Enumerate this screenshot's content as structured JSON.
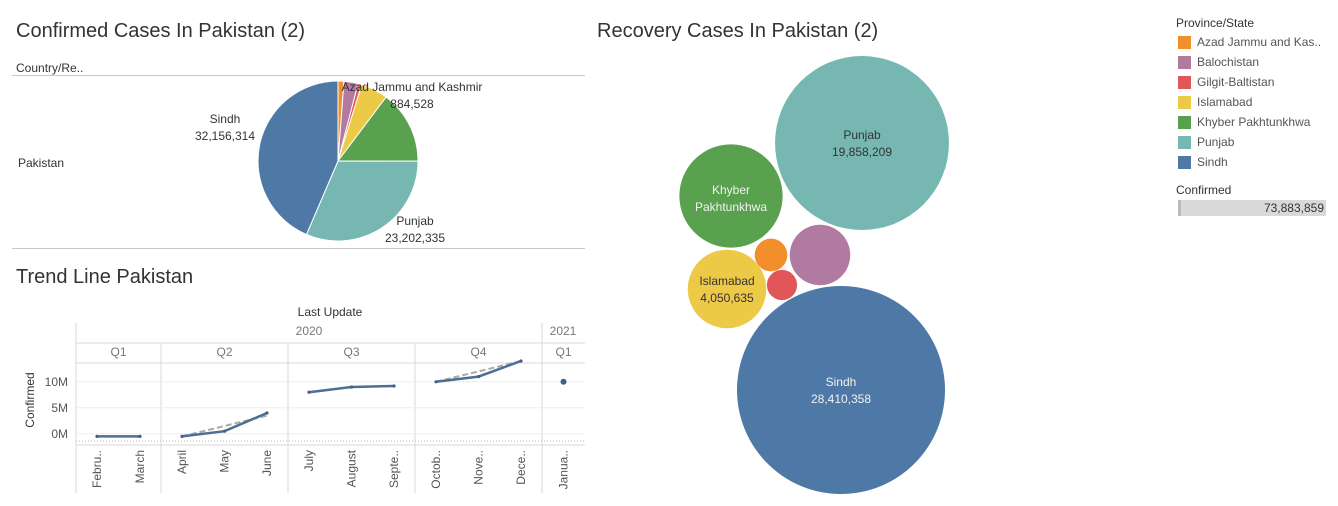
{
  "confirmed_title": "Confirmed Cases In Pakistan (2)",
  "recovery_title": "Recovery Cases In Pakistan (2)",
  "trend_title": "Trend Line Pakistan",
  "country_header": "Country/Re..",
  "country_value": "Pakistan",
  "legend": {
    "title": "Province/State",
    "items": [
      {
        "label": "Azad Jammu and Kas..",
        "color": "#f28e2b"
      },
      {
        "label": "Balochistan",
        "color": "#b07aa1"
      },
      {
        "label": "Gilgit-Baltistan",
        "color": "#e15759"
      },
      {
        "label": "Islamabad",
        "color": "#edc948"
      },
      {
        "label": "Khyber Pakhtunkhwa",
        "color": "#59a14f"
      },
      {
        "label": "Punjab",
        "color": "#76b7b2"
      },
      {
        "label": "Sindh",
        "color": "#4e79a7"
      }
    ],
    "size_title": "Confirmed",
    "size_value": "73,883,859"
  },
  "chart_data": [
    {
      "type": "pie",
      "title": "Confirmed Cases In Pakistan (2)",
      "slices": [
        {
          "name": "Azad Jammu and Kashmir",
          "value": 884528,
          "label_name": "Azad Jammu and Kashmir",
          "label_value": "884,528",
          "color": "#f28e2b"
        },
        {
          "name": "Balochistan",
          "value": 2100000,
          "color": "#b07aa1"
        },
        {
          "name": "Gilgit-Baltistan",
          "value": 550000,
          "color": "#e15759"
        },
        {
          "name": "Islamabad",
          "value": 4050635,
          "color": "#edc948"
        },
        {
          "name": "Khyber Pakhtunkhwa",
          "value": 10900000,
          "color": "#59a14f"
        },
        {
          "name": "Punjab",
          "value": 23202335,
          "label_name": "Punjab",
          "label_value": "23,202,335",
          "color": "#76b7b2"
        },
        {
          "name": "Sindh",
          "value": 32156314,
          "label_name": "Sindh",
          "label_value": "32,156,314",
          "color": "#4e79a7"
        }
      ]
    },
    {
      "type": "bubble",
      "title": "Recovery Cases In Pakistan (2)",
      "bubbles": [
        {
          "name": "Punjab",
          "value": 19858209,
          "label_name": "Punjab",
          "label_value": "19,858,209",
          "color": "#76b7b2"
        },
        {
          "name": "Khyber Pakhtunkhwa",
          "value": 7000000,
          "label_name": "Khyber Pakhtunkhwa",
          "label_lines": [
            "Khyber",
            "Pakhtunkhwa"
          ],
          "color": "#59a14f"
        },
        {
          "name": "Balochistan",
          "value": 2400000,
          "color": "#b07aa1"
        },
        {
          "name": "Azad Jammu and Kashmir",
          "value": 700000,
          "color": "#f28e2b"
        },
        {
          "name": "Gilgit-Baltistan",
          "value": 600000,
          "color": "#e15759"
        },
        {
          "name": "Islamabad",
          "value": 4050635,
          "label_name": "Islamabad",
          "label_value": "4,050,635",
          "color": "#edc948"
        },
        {
          "name": "Sindh",
          "value": 28410358,
          "label_name": "Sindh",
          "label_value": "28,410,358",
          "color": "#4e79a7"
        }
      ]
    },
    {
      "type": "line",
      "title": "Trend Line Pakistan",
      "xlabel": "Last Update",
      "ylabel": "Confirmed",
      "years": [
        {
          "label": "2020",
          "quarters": [
            "Q1",
            "Q2",
            "Q3",
            "Q4"
          ]
        },
        {
          "label": "2021",
          "quarters": [
            "Q1"
          ]
        }
      ],
      "months": [
        "Febru..",
        "March",
        "April",
        "May",
        "June",
        "July",
        "August",
        "Septe..",
        "Octob..",
        "Nove..",
        "Dece..",
        "Janua.."
      ],
      "y_ticks": [
        "0M",
        "5M",
        "10M"
      ],
      "ylim": [
        -1000000,
        14000000
      ],
      "series": [
        {
          "values": [
            -500000,
            -500000,
            -500000,
            500000,
            4000000,
            8000000,
            9000000,
            9200000,
            10000000,
            11000000,
            14000000,
            10000000
          ]
        }
      ],
      "trend_lines": [
        {
          "quarter": 0,
          "values": [
            -500000,
            -500000
          ]
        },
        {
          "quarter": 1,
          "values": [
            -500000,
            1500000,
            3500000
          ]
        },
        {
          "quarter": 2,
          "values": [
            8000000,
            9000000,
            9200000
          ]
        },
        {
          "quarter": 3,
          "values": [
            10000000,
            12000000,
            14000000
          ]
        }
      ]
    }
  ]
}
